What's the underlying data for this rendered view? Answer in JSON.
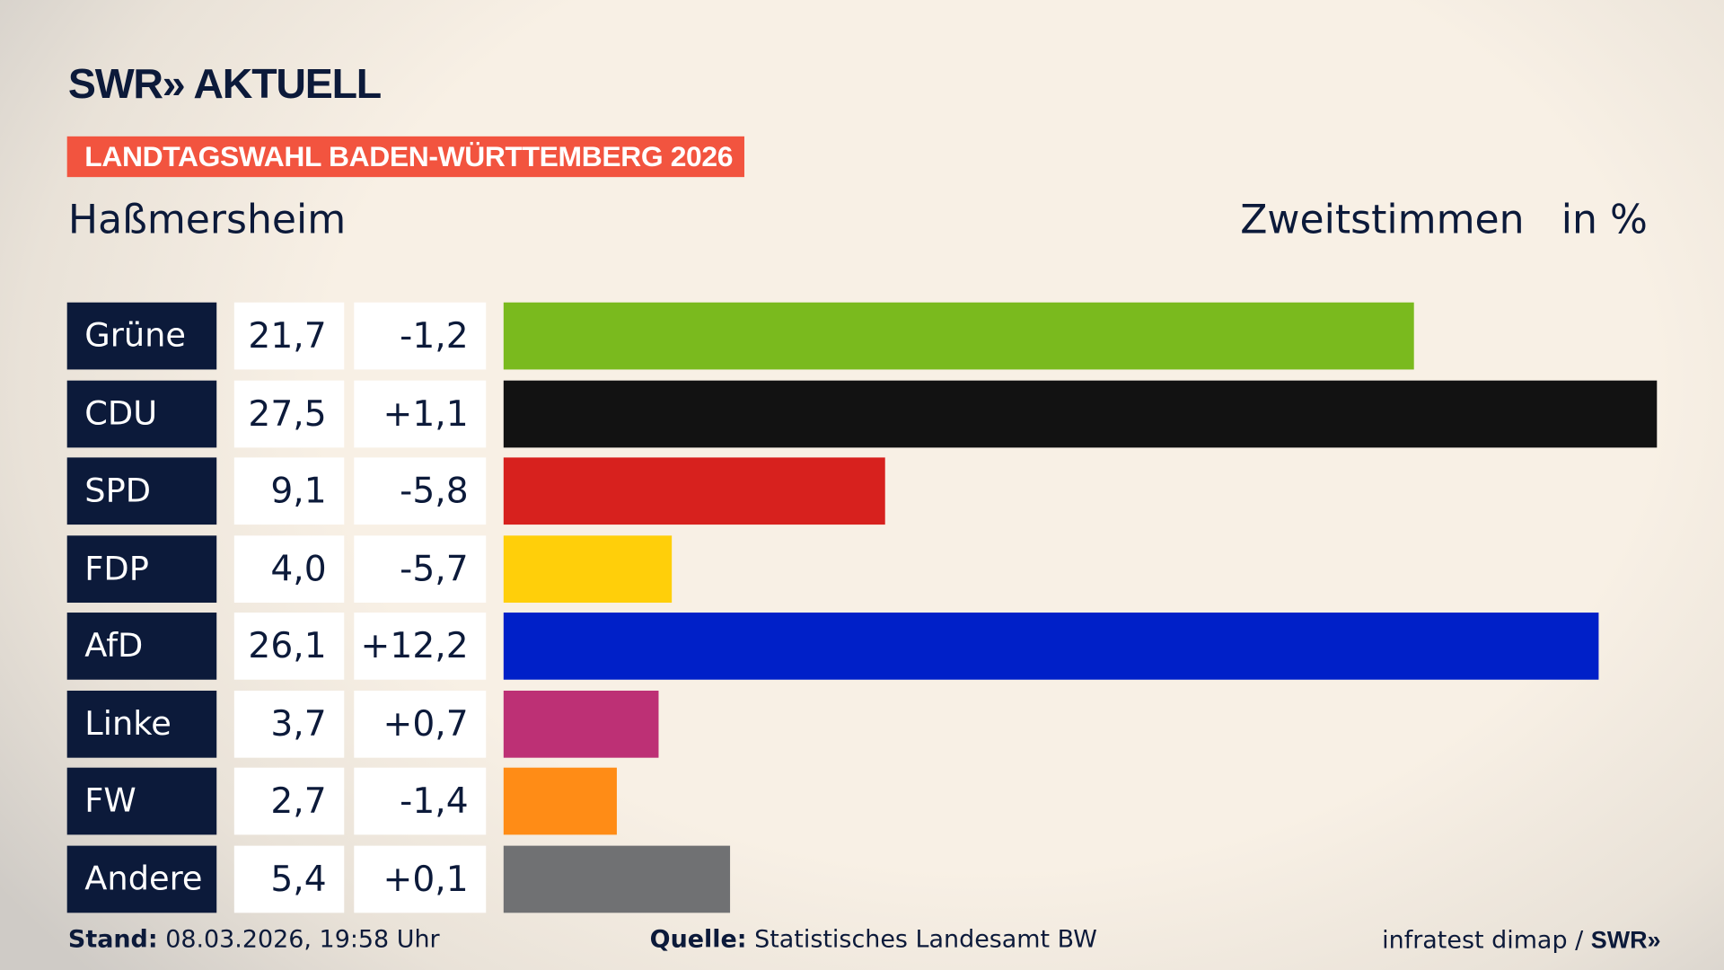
{
  "header": {
    "logo": "SWR» AKTUELL",
    "banner": "LANDTAGSWAHL BADEN-WÜRTTEMBERG 2026",
    "place": "Haßmersheim",
    "vote_type": "Zweitstimmen",
    "unit": "in %"
  },
  "chart_data": {
    "type": "bar",
    "orientation": "horizontal",
    "categories": [
      "Grüne",
      "CDU",
      "SPD",
      "FDP",
      "AfD",
      "Linke",
      "FW",
      "Andere"
    ],
    "values": [
      21.7,
      27.5,
      9.1,
      4.0,
      26.1,
      3.7,
      2.7,
      5.4
    ],
    "value_labels": [
      "21,7",
      "27,5",
      "9,1",
      "4,0",
      "26,1",
      "3,7",
      "2,7",
      "5,4"
    ],
    "diff_labels": [
      "-1,2",
      "+1,1",
      "-5,8",
      "-5,7",
      "+12,2",
      "+0,7",
      "-1,4",
      "+0,1"
    ],
    "colors": [
      "#7aba1e",
      "#121212",
      "#d7211e",
      "#ffcf0a",
      "#0020c8",
      "#bd3075",
      "#ff8c16",
      "#707173"
    ],
    "xlim": [
      0,
      27.5
    ],
    "grid": false
  },
  "footer": {
    "stand_label": "Stand:",
    "stand_value": "08.03.2026, 19:58 Uhr",
    "source_label": "Quelle:",
    "source_value": "Statistisches Landesamt BW",
    "credit": "infratest dimap /",
    "credit_logo": "SWR»"
  }
}
